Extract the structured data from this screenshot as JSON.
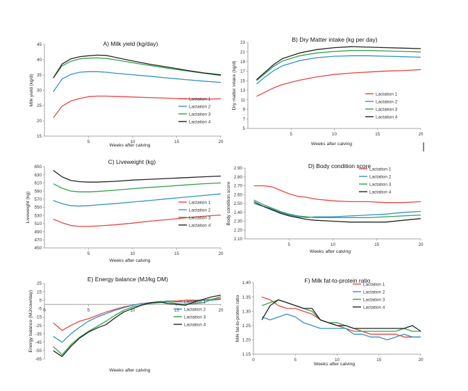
{
  "chart_data": [
    {
      "type": "line",
      "title": "A) Milk yield (kg/day)",
      "xlabel": "Weeks after calving",
      "ylabel": "Milk yield (kg/d)",
      "xlim": [
        0,
        20
      ],
      "ylim": [
        15,
        45
      ],
      "xticks": [
        5,
        10,
        15,
        20
      ],
      "yticks": [
        15,
        20,
        25,
        30,
        35,
        40,
        45
      ],
      "x": [
        1,
        2,
        3,
        4,
        5,
        6,
        7,
        8,
        10,
        12,
        14,
        16,
        18,
        20
      ],
      "series": [
        {
          "name": "Lactation 1",
          "color": "#e8443f",
          "values": [
            21,
            24.8,
            26.5,
            27.3,
            27.9,
            28.1,
            28.1,
            28,
            27.8,
            27.6,
            27.4,
            27.2,
            27.1,
            27.2
          ]
        },
        {
          "name": "Lactation 2",
          "color": "#2f90c8",
          "values": [
            29.5,
            33.7,
            35.2,
            35.9,
            36.1,
            36.1,
            35.9,
            35.6,
            35.1,
            34.6,
            34,
            33.5,
            33,
            32.6
          ]
        },
        {
          "name": "Lactation 3",
          "color": "#2fa04a",
          "values": [
            34,
            38,
            39.5,
            40.3,
            40.5,
            40.6,
            40.4,
            40,
            39,
            38.1,
            37.2,
            36.4,
            35.6,
            34.8
          ]
        },
        {
          "name": "Lactation 4",
          "color": "#222222",
          "values": [
            34,
            38.6,
            40.3,
            41,
            41.3,
            41.5,
            41.4,
            40.8,
            39.6,
            38.5,
            37.6,
            36.6,
            35.7,
            35.1
          ]
        }
      ]
    },
    {
      "type": "line",
      "title": "B) Dry Matter intake (kg per day)",
      "xlabel": "Weeks after calving",
      "ylabel": "Dry matter intake (kg/d)",
      "xlim": [
        0,
        20
      ],
      "ylim": [
        5,
        23
      ],
      "xticks": [
        5,
        10,
        15,
        20
      ],
      "yticks": [
        5,
        7,
        9,
        11,
        13,
        15,
        17,
        19,
        21,
        23
      ],
      "x": [
        1,
        2,
        3,
        4,
        6,
        8,
        10,
        12,
        14,
        16,
        18,
        20
      ],
      "series": [
        {
          "name": "Lactation 1",
          "color": "#e8443f",
          "values": [
            11.7,
            12.6,
            13.5,
            14.2,
            15.1,
            15.8,
            16.3,
            16.6,
            16.8,
            17,
            17.1,
            17.3
          ]
        },
        {
          "name": "Lactation 2",
          "color": "#2f90c8",
          "values": [
            14.3,
            15.8,
            17.1,
            18.1,
            19.2,
            19.8,
            20.1,
            20.2,
            20.2,
            20.1,
            20,
            19.9
          ]
        },
        {
          "name": "Lactation 3",
          "color": "#2fa04a",
          "values": [
            15,
            16.5,
            18,
            19.1,
            20.2,
            20.8,
            21.1,
            21.3,
            21.3,
            21.2,
            21.1,
            21
          ]
        },
        {
          "name": "Lactation 4",
          "color": "#222222",
          "values": [
            15.2,
            16.8,
            18.4,
            19.6,
            20.8,
            21.5,
            21.9,
            22.1,
            22,
            21.9,
            21.8,
            21.7
          ]
        }
      ]
    },
    {
      "type": "line",
      "title": "C) Liveweight (kg)",
      "xlabel": "Weeks after calving",
      "ylabel": "Liveweight (kg)",
      "xlim": [
        0,
        20
      ],
      "ylim": [
        450,
        650
      ],
      "xticks": [
        5,
        10,
        15,
        20
      ],
      "yticks": [
        450,
        470,
        490,
        510,
        530,
        550,
        570,
        590,
        610,
        630,
        650
      ],
      "x": [
        1,
        2,
        3,
        4,
        5,
        6,
        8,
        10,
        12,
        14,
        16,
        18,
        20
      ],
      "series": [
        {
          "name": "Lactation 1",
          "color": "#e8443f",
          "values": [
            521,
            512,
            505,
            503,
            503,
            504,
            507,
            511,
            516,
            520,
            524,
            528,
            531
          ]
        },
        {
          "name": "Lactation 2",
          "color": "#2f90c8",
          "values": [
            567,
            559,
            554,
            553,
            554,
            556,
            559,
            563,
            567,
            571,
            575,
            579,
            583
          ]
        },
        {
          "name": "Lactation 3",
          "color": "#2fa04a",
          "values": [
            608,
            597,
            590,
            588,
            588,
            589,
            592,
            596,
            599,
            602,
            605,
            608,
            610
          ]
        },
        {
          "name": "Lactation 4",
          "color": "#222222",
          "values": [
            641,
            625,
            616,
            613,
            612,
            612,
            614,
            617,
            619,
            621,
            623,
            625,
            627
          ]
        }
      ]
    },
    {
      "type": "line",
      "title": "D) Body condition score",
      "xlabel": "Weeks after calving",
      "ylabel": "Body condition score",
      "xlim": [
        0,
        20
      ],
      "ylim": [
        2.1,
        2.9
      ],
      "xticks": [
        5,
        10,
        15,
        20
      ],
      "yticks": [
        2.1,
        2.2,
        2.3,
        2.4,
        2.5,
        2.6,
        2.7,
        2.8,
        2.9
      ],
      "x": [
        1,
        2,
        3,
        4,
        5,
        6,
        7,
        8,
        10,
        12,
        14,
        16,
        18,
        20
      ],
      "series": [
        {
          "name": "Lactation 1",
          "color": "#e8443f",
          "values": [
            2.7,
            2.7,
            2.69,
            2.65,
            2.61,
            2.58,
            2.57,
            2.55,
            2.53,
            2.52,
            2.52,
            2.51,
            2.51,
            2.52
          ]
        },
        {
          "name": "Lactation 2",
          "color": "#2f90c8",
          "values": [
            2.5,
            2.47,
            2.44,
            2.4,
            2.37,
            2.35,
            2.34,
            2.35,
            2.35,
            2.36,
            2.37,
            2.38,
            2.4,
            2.41
          ]
        },
        {
          "name": "Lactation 3",
          "color": "#2fa04a",
          "values": [
            2.54,
            2.49,
            2.45,
            2.41,
            2.38,
            2.36,
            2.35,
            2.34,
            2.34,
            2.34,
            2.34,
            2.35,
            2.36,
            2.37
          ]
        },
        {
          "name": "Lactation 4",
          "color": "#222222",
          "values": [
            2.52,
            2.47,
            2.43,
            2.39,
            2.36,
            2.34,
            2.32,
            2.31,
            2.3,
            2.29,
            2.29,
            2.29,
            2.31,
            2.33
          ]
        }
      ]
    },
    {
      "type": "line",
      "title": "E) Energy balance (MJ/kg DM)",
      "xlabel": "Weeks after calving",
      "ylabel": "Energy balance (MJ/cow/day)",
      "xlim": [
        0,
        20
      ],
      "ylim": [
        -65,
        25
      ],
      "xticks": [
        0,
        5,
        10,
        15,
        20
      ],
      "yticks": [
        25,
        15,
        5,
        -5,
        -15,
        -25,
        -35,
        -45,
        -55,
        -65
      ],
      "x": [
        1,
        2,
        3,
        4,
        5,
        6,
        7,
        8,
        9,
        10,
        11,
        12,
        13,
        14,
        15,
        16,
        17,
        18,
        19,
        20
      ],
      "series": [
        {
          "name": "Lactation 1",
          "color": "#e8443f",
          "values": [
            -22,
            -31,
            -25,
            -20,
            -17,
            -13,
            -9,
            -6,
            -3,
            -1,
            1,
            2,
            3,
            4,
            4,
            5,
            5,
            5,
            6,
            7
          ]
        },
        {
          "name": "Lactation 2",
          "color": "#2f90c8",
          "values": [
            -38,
            -45,
            -35,
            -27,
            -20,
            -15,
            -11,
            -7,
            -4,
            -1,
            1,
            2,
            3,
            4,
            3,
            3,
            4,
            5,
            5,
            6
          ]
        },
        {
          "name": "Lactation 3",
          "color": "#2fa04a",
          "values": [
            -50,
            -60,
            -48,
            -39,
            -32,
            -26,
            -20,
            -13,
            -7,
            -3,
            -1,
            1,
            2,
            3,
            1,
            0,
            1,
            2,
            6,
            9
          ]
        },
        {
          "name": "Lactation 4",
          "color": "#222222",
          "values": [
            -55,
            -62,
            -50,
            -40,
            -33,
            -28,
            -24,
            -16,
            -9,
            -5,
            -1,
            2,
            3,
            1,
            0,
            -1,
            3,
            6,
            9,
            11
          ]
        }
      ]
    },
    {
      "type": "line",
      "title": "F) Milk fat-to-protein ratio",
      "xlabel": "Weeks after calving",
      "ylabel": "Milk fat-to-protein ratio",
      "xlim": [
        0,
        20
      ],
      "ylim": [
        1.15,
        1.4
      ],
      "xticks": [
        0,
        5,
        10,
        15,
        20
      ],
      "yticks": [
        1.15,
        1.2,
        1.25,
        1.3,
        1.35,
        1.4
      ],
      "x": [
        1,
        2,
        3,
        4,
        5,
        6,
        7,
        8,
        9,
        10,
        11,
        12,
        13,
        14,
        15,
        16,
        17,
        18,
        19,
        20
      ],
      "series": [
        {
          "name": "Lactation 1",
          "color": "#e8443f",
          "values": [
            1.35,
            1.34,
            1.32,
            1.31,
            1.31,
            1.3,
            1.29,
            1.27,
            1.26,
            1.25,
            1.24,
            1.23,
            1.23,
            1.22,
            1.22,
            1.22,
            1.22,
            1.21,
            1.21,
            1.21
          ]
        },
        {
          "name": "Lactation 2",
          "color": "#2f90c8",
          "values": [
            1.28,
            1.27,
            1.28,
            1.29,
            1.28,
            1.26,
            1.25,
            1.24,
            1.24,
            1.24,
            1.24,
            1.22,
            1.22,
            1.21,
            1.21,
            1.2,
            1.21,
            1.22,
            1.21,
            1.21
          ]
        },
        {
          "name": "Lactation 3",
          "color": "#2fa04a",
          "values": [
            1.32,
            1.33,
            1.34,
            1.33,
            1.32,
            1.31,
            1.3,
            1.27,
            1.26,
            1.26,
            1.25,
            1.24,
            1.23,
            1.23,
            1.23,
            1.23,
            1.23,
            1.24,
            1.23,
            1.23
          ]
        },
        {
          "name": "Lactation 4",
          "color": "#222222",
          "values": [
            1.27,
            1.32,
            1.34,
            1.33,
            1.32,
            1.31,
            1.31,
            1.27,
            1.26,
            1.25,
            1.25,
            1.24,
            1.24,
            1.24,
            1.24,
            1.24,
            1.24,
            1.24,
            1.25,
            1.23
          ]
        }
      ]
    }
  ]
}
